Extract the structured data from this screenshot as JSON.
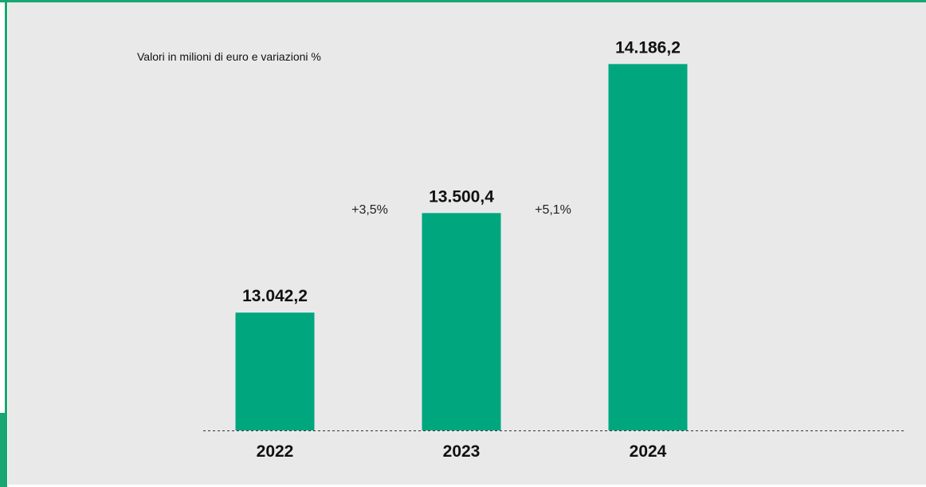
{
  "chart_data": {
    "type": "bar",
    "subtitle": "Valori in milioni di euro e variazioni %",
    "categories": [
      "2022",
      "2023",
      "2024"
    ],
    "values": [
      13042.2,
      13500.4,
      14186.2
    ],
    "value_labels": [
      "13.042,2",
      "13.500,4",
      "14.186,2"
    ],
    "variations": [
      "+3,5%",
      "+5,1%"
    ],
    "bar_color": "#00a77e",
    "baseline": "dashed",
    "grid": false
  }
}
